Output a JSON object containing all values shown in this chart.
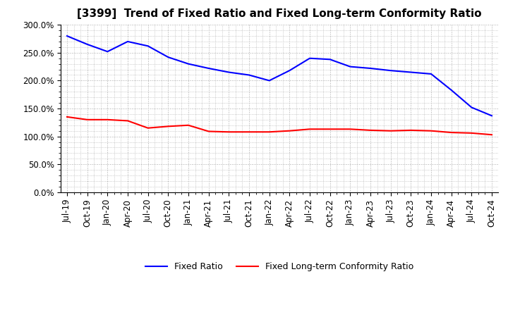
{
  "title": "[3399]  Trend of Fixed Ratio and Fixed Long-term Conformity Ratio",
  "x_labels": [
    "Jul-19",
    "Oct-19",
    "Jan-20",
    "Apr-20",
    "Jul-20",
    "Oct-20",
    "Jan-21",
    "Apr-21",
    "Jul-21",
    "Oct-21",
    "Jan-22",
    "Apr-22",
    "Jul-22",
    "Oct-22",
    "Jan-23",
    "Apr-23",
    "Jul-23",
    "Oct-23",
    "Jan-24",
    "Apr-24",
    "Jul-24",
    "Oct-24"
  ],
  "fixed_ratio": [
    280,
    265,
    252,
    270,
    262,
    242,
    230,
    222,
    215,
    210,
    200,
    218,
    240,
    238,
    225,
    222,
    218,
    215,
    212,
    183,
    152,
    137
  ],
  "fixed_lt_ratio": [
    135,
    130,
    130,
    128,
    115,
    118,
    120,
    109,
    108,
    108,
    108,
    110,
    113,
    113,
    113,
    111,
    110,
    111,
    110,
    107,
    106,
    103
  ],
  "ylim": [
    0,
    300
  ],
  "yticks": [
    0,
    50,
    100,
    150,
    200,
    250,
    300
  ],
  "line_color_fixed": "#0000ff",
  "line_color_lt": "#ff0000",
  "grid_color": "#aaaaaa",
  "bg_color": "#ffffff",
  "legend_fixed": "Fixed Ratio",
  "legend_lt": "Fixed Long-term Conformity Ratio",
  "title_fontsize": 11,
  "tick_fontsize": 8.5,
  "legend_fontsize": 9
}
